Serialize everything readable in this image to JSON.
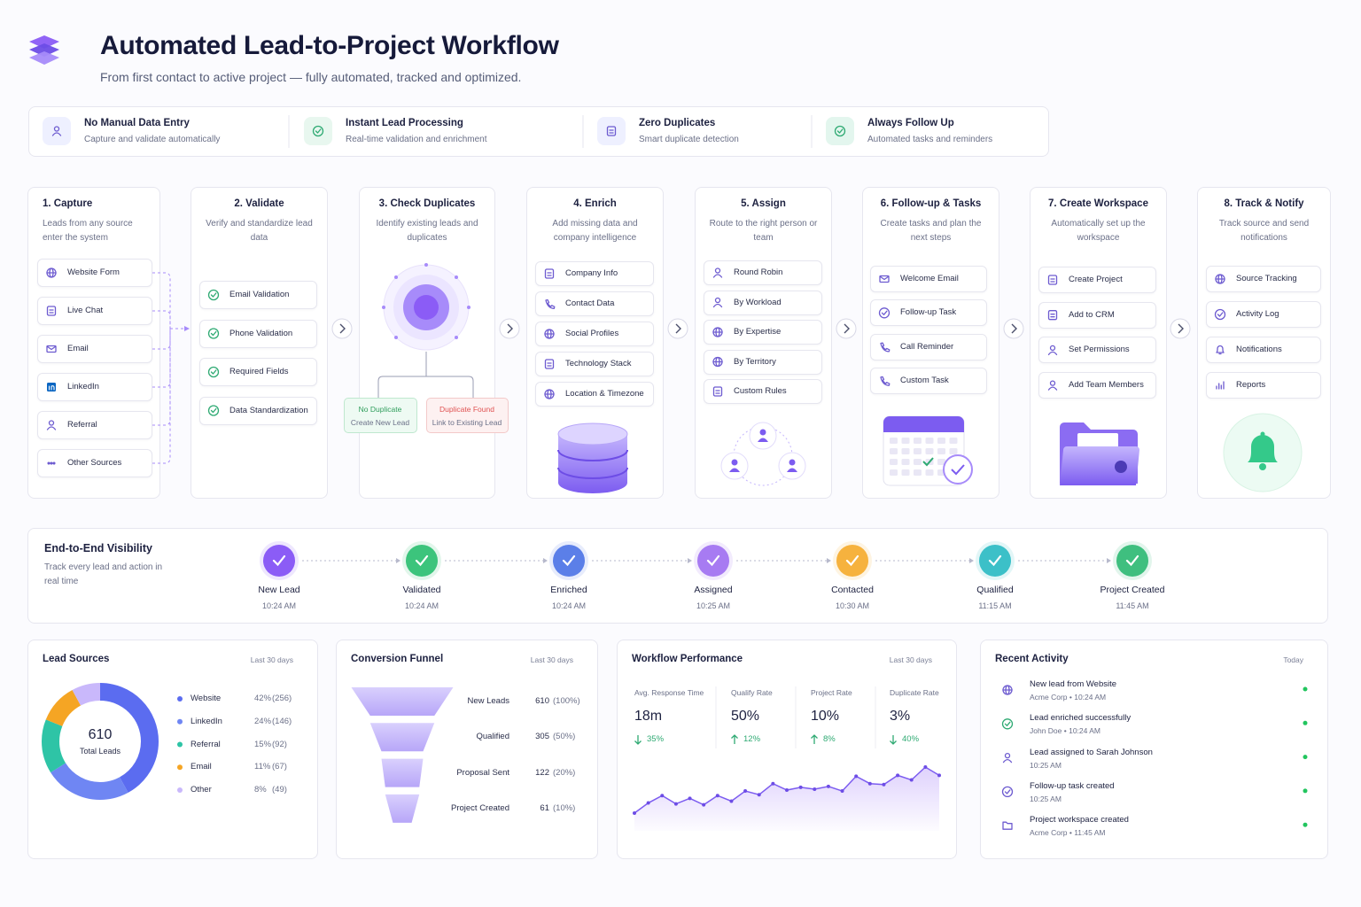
{
  "header": {
    "title": "Automated Lead-to-Project Workflow",
    "subtitle": "From first contact to active project — fully automated, tracked and optimized."
  },
  "features": [
    {
      "title": "No Manual Data Entry",
      "description": "Capture and validate automatically"
    },
    {
      "title": "Instant Lead Processing",
      "description": "Real-time validation and enrichment"
    },
    {
      "title": "Zero Duplicates",
      "description": "Smart duplicate detection"
    },
    {
      "title": "Always Follow Up",
      "description": "Automated tasks and reminders"
    }
  ],
  "steps": [
    {
      "title": "1. Capture",
      "description": "Leads from any source enter the system",
      "items": [
        "Website Form",
        "Live Chat",
        "Email",
        "LinkedIn",
        "Referral",
        "Other Sources"
      ]
    },
    {
      "title": "2. Validate",
      "description": "Verify and standardize lead data",
      "items": [
        "Email Validation",
        "Phone Validation",
        "Required Fields",
        "Data Standardization"
      ]
    },
    {
      "title": "3. Check Duplicates",
      "description": "Identify existing leads and duplicates",
      "branches": [
        {
          "title": "No Duplicate",
          "action": "Create New Lead"
        },
        {
          "title": "Duplicate Found",
          "action": "Link to Existing Lead"
        }
      ]
    },
    {
      "title": "4. Enrich",
      "description": "Add missing data and company intelligence",
      "items": [
        "Company Info",
        "Contact Data",
        "Social Profiles",
        "Technology Stack",
        "Location & Timezone"
      ]
    },
    {
      "title": "5. Assign",
      "description": "Route to the right person or team",
      "items": [
        "Round Robin",
        "By Workload",
        "By Expertise",
        "By Territory",
        "Custom Rules"
      ]
    },
    {
      "title": "6. Follow-up & Tasks",
      "description": "Create tasks and plan the next steps",
      "items": [
        "Welcome Email",
        "Follow-up Task",
        "Call Reminder",
        "Custom Task"
      ]
    },
    {
      "title": "7. Create Workspace",
      "description": "Automatically set up the workspace",
      "items": [
        "Create Project",
        "Add to CRM",
        "Set Permissions",
        "Add Team Members"
      ]
    },
    {
      "title": "8. Track & Notify",
      "description": "Track source and send notifications",
      "items": [
        "Source Tracking",
        "Activity Log",
        "Notifications",
        "Reports"
      ]
    }
  ],
  "visibility": {
    "title": "End-to-End Visibility",
    "description": "Track every lead and action in real time",
    "events": [
      {
        "label": "New Lead",
        "time": "10:24 AM"
      },
      {
        "label": "Validated",
        "time": "10:24 AM"
      },
      {
        "label": "Enriched",
        "time": "10:24 AM"
      },
      {
        "label": "Assigned",
        "time": "10:25 AM"
      },
      {
        "label": "Contacted",
        "time": "10:30 AM"
      },
      {
        "label": "Qualified",
        "time": "11:15 AM"
      },
      {
        "label": "Project Created",
        "time": "11:45 AM"
      }
    ]
  },
  "lead_sources": {
    "title": "Lead Sources",
    "period": "Last 30 days",
    "total": 610,
    "total_label": "Total Leads",
    "items": [
      {
        "name": "Website",
        "value": 42,
        "value_label": "42%",
        "count_label": "(256)",
        "color": "#5b6cf0"
      },
      {
        "name": "LinkedIn",
        "value": 24,
        "value_label": "24%",
        "count_label": "(146)",
        "color": "#6f86f3"
      },
      {
        "name": "Referral",
        "value": 15,
        "value_label": "15%",
        "count_label": "(92)",
        "color": "#2ec4a6"
      },
      {
        "name": "Email",
        "value": 11,
        "value_label": "11%",
        "count_label": "(67)",
        "color": "#f5a524"
      },
      {
        "name": "Other",
        "value": 8,
        "value_label": "8%",
        "count_label": "(49)",
        "color": "#c9b8fb"
      }
    ]
  },
  "conversion_funnel": {
    "title": "Conversion Funnel",
    "period": "Last 30 days",
    "stages": [
      {
        "name": "New Leads",
        "value": 610,
        "share_label": "(100%)"
      },
      {
        "name": "Qualified",
        "value": 305,
        "share_label": "(50%)"
      },
      {
        "name": "Proposal Sent",
        "value": 122,
        "share_label": "(20%)"
      },
      {
        "name": "Project Created",
        "value": 61,
        "share_label": "(10%)"
      }
    ]
  },
  "workflow_performance": {
    "title": "Workflow Performance",
    "period": "Last 30 days",
    "metrics": [
      {
        "label": "Avg. Response Time",
        "value": "18m",
        "change": "35%",
        "direction": "down"
      },
      {
        "label": "Qualify Rate",
        "value": "50%",
        "change": "12%",
        "direction": "up"
      },
      {
        "label": "Project Rate",
        "value": "10%",
        "change": "8%",
        "direction": "up"
      },
      {
        "label": "Duplicate Rate",
        "value": "3%",
        "change": "40%",
        "direction": "down"
      }
    ],
    "trend": [
      14,
      25,
      33,
      24,
      30,
      23,
      33,
      27,
      38,
      34,
      46,
      39,
      42,
      40,
      43,
      38,
      54,
      46,
      45,
      55,
      50,
      64,
      55
    ]
  },
  "recent_activity": {
    "title": "Recent Activity",
    "period": "Today",
    "items": [
      {
        "title": "New lead from Website",
        "meta": "Acme Corp • 10:24 AM"
      },
      {
        "title": "Lead enriched successfully",
        "meta": "John Doe • 10:24 AM"
      },
      {
        "title": "Lead assigned to Sarah Johnson",
        "meta": "10:25 AM"
      },
      {
        "title": "Follow-up task created",
        "meta": "10:25 AM"
      },
      {
        "title": "Project workspace created",
        "meta": "Acme Corp • 11:45 AM"
      }
    ]
  }
}
